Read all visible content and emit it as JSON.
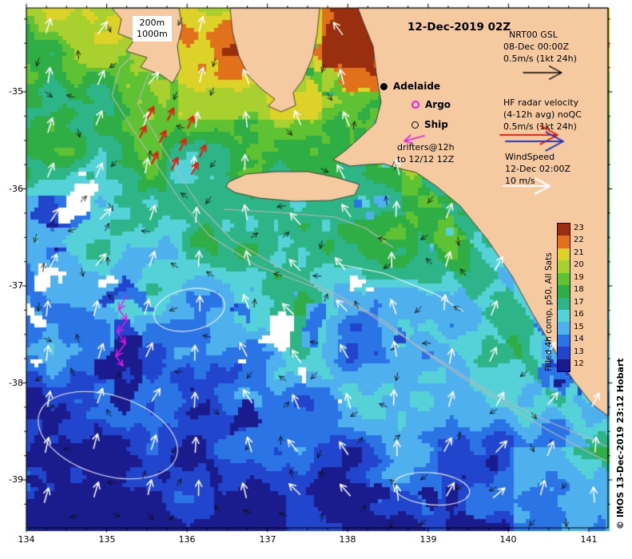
{
  "title": "12-Dec-2019 02Z",
  "credit": "© IMOS 13-Dec-2019 23:12 Hobart",
  "depth_labels": {
    "d200": "200m",
    "d1000": "1000m"
  },
  "markers": {
    "adelaide": "Adelaide",
    "argo": "Argo",
    "ship": "Ship",
    "drifters_line1": "drifters@12h",
    "drifters_line2": "to 12/12 12Z"
  },
  "legend": {
    "gsl": {
      "title": "NRT00 GSL",
      "time": "08-Dec 00:00Z",
      "scale": "0.5m/s (1kt 24h)"
    },
    "hf": {
      "title": "HF radar velocity",
      "subtitle": "(4-12h avg) noQC",
      "scale": "0.5m/s (1kt 24h)"
    },
    "wind": {
      "title": "WindSpeed",
      "time": "12-Dec 02:00Z",
      "scale": "10 m/s"
    }
  },
  "colorbar": {
    "label": "Filled 4h comp, p50, All Sats",
    "ticks": [
      "23",
      "22",
      "21",
      "20",
      "19",
      "18",
      "17",
      "16",
      "15",
      "14",
      "13",
      "12"
    ],
    "colors_top_to_bottom": [
      "#992f0e",
      "#e2711b",
      "#ddd228",
      "#a8d02e",
      "#5fc232",
      "#2fae46",
      "#2db487",
      "#55d2d8",
      "#4fb0ee",
      "#2a74e6",
      "#2145cc",
      "#1a1c8e"
    ]
  },
  "axes": {
    "x_ticks": [
      "134",
      "135",
      "136",
      "137",
      "138",
      "139",
      "140",
      "141"
    ],
    "y_ticks": [
      "-35",
      "-36",
      "-37",
      "-38",
      "-39"
    ]
  },
  "map_colors": {
    "land": "#f6caa0",
    "no_data": "#ffffff",
    "bathymetry_contour": "#b9b9b9",
    "sst_contour": "#ffffff",
    "wind_arrow": "#ffffff",
    "current_arrow": "#101010",
    "hf_radar_red": "#dd2211",
    "hf_radar_blue": "#2435bb",
    "drifter": "#e818e8",
    "gsl_arrow": "#000000"
  },
  "chart_data": {
    "type": "heatmap",
    "title": "12-Dec-2019 02Z",
    "x_range": [
      134,
      141.2
    ],
    "y_range": [
      -39.5,
      -34.1
    ],
    "colorbar_label": "Filled 4h comp, p50, All Sats",
    "colorbar_range": [
      12,
      23
    ]
  }
}
